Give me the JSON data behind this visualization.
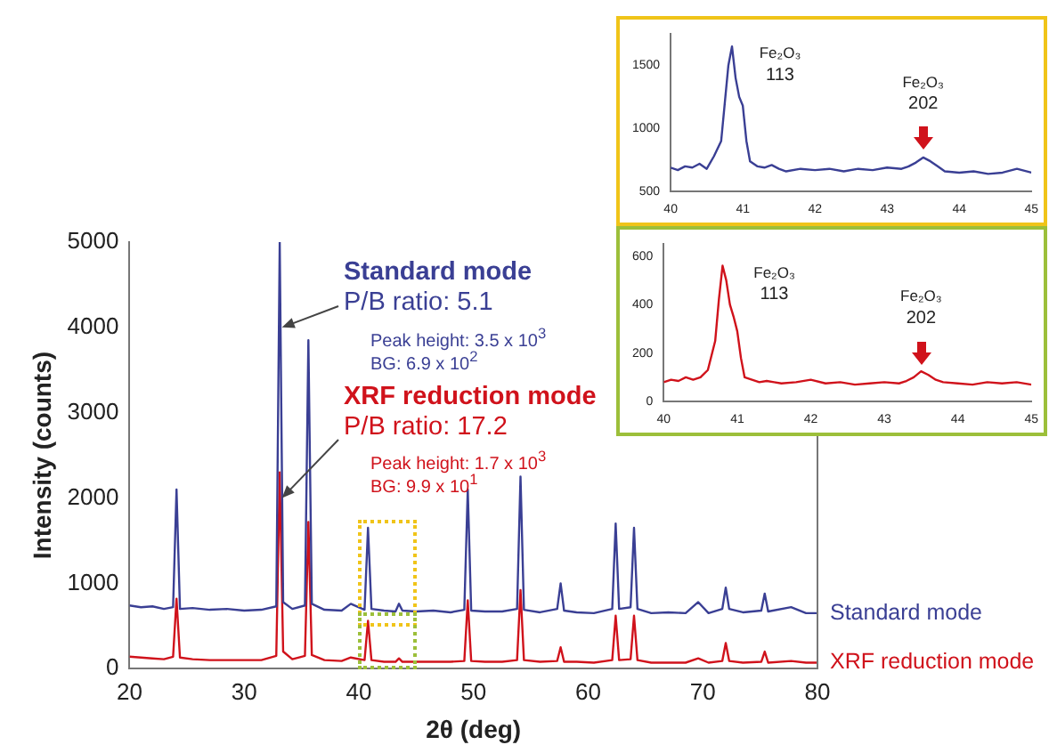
{
  "chart_data": [
    {
      "type": "line",
      "xlabel": "2θ (deg)",
      "ylabel": "Intensity (counts)",
      "xlim": [
        20,
        80
      ],
      "xticks": [
        20,
        30,
        40,
        50,
        60,
        70,
        80
      ],
      "ylim": [
        0,
        5000
      ],
      "yticks": [
        0,
        1000,
        2000,
        3000,
        4000,
        5000
      ],
      "x": [
        20,
        21,
        22,
        23,
        23.8,
        24.1,
        24.4,
        25.5,
        27,
        28.5,
        30,
        31.5,
        32.8,
        33.1,
        33.4,
        34.2,
        35.3,
        35.6,
        35.9,
        37,
        38.5,
        39.3,
        40.5,
        40.8,
        41.1,
        42.2,
        43.2,
        43.5,
        43.8,
        45,
        46.5,
        48,
        49.2,
        49.5,
        49.8,
        51,
        52.5,
        53.8,
        54.1,
        54.4,
        55.8,
        57.3,
        57.6,
        57.9,
        59,
        60.5,
        62.1,
        62.4,
        62.7,
        63.7,
        64,
        64.3,
        65.5,
        67,
        68.5,
        69.6,
        70.5,
        71.7,
        72,
        72.3,
        73.5,
        75.1,
        75.4,
        75.7,
        77.7,
        79,
        80
      ],
      "series": [
        {
          "name": "Standard mode",
          "color": "#3a3f94",
          "values": [
            740,
            720,
            730,
            700,
            720,
            2100,
            700,
            710,
            690,
            700,
            680,
            690,
            730,
            5000,
            780,
            700,
            740,
            3850,
            760,
            690,
            680,
            760,
            690,
            1650,
            700,
            680,
            670,
            760,
            680,
            670,
            680,
            660,
            690,
            2100,
            680,
            670,
            670,
            700,
            2250,
            690,
            660,
            700,
            1000,
            680,
            660,
            650,
            700,
            1700,
            700,
            720,
            1650,
            700,
            650,
            660,
            650,
            780,
            650,
            700,
            950,
            700,
            660,
            680,
            880,
            670,
            720,
            650,
            650
          ]
        },
        {
          "name": "XRF reduction mode",
          "color": "#d0121b",
          "values": [
            140,
            130,
            120,
            110,
            140,
            820,
            130,
            110,
            100,
            100,
            100,
            100,
            150,
            2300,
            200,
            110,
            150,
            1720,
            160,
            100,
            90,
            130,
            100,
            560,
            100,
            80,
            80,
            120,
            80,
            80,
            80,
            80,
            90,
            800,
            90,
            80,
            80,
            100,
            920,
            100,
            80,
            90,
            250,
            80,
            80,
            70,
            100,
            620,
            100,
            110,
            620,
            100,
            70,
            70,
            70,
            120,
            70,
            90,
            300,
            90,
            70,
            80,
            200,
            70,
            90,
            70,
            70
          ]
        }
      ],
      "annotations": [
        "Standard mode",
        {
          "text": "P/B ratio: 5.1",
          "x": 33.3,
          "y": 4000
        },
        "Peak height: 3.5 x 10$^{3}$",
        "BG: 6.9 x 10$^{2}$",
        "XRF reduction mode",
        {
          "text": "P/B ratio: 17.2",
          "x": 33.3,
          "y": 2000
        },
        "Peak height: 1.7 x 10$^{3}$",
        "BG: 9.9 x 10$^{1}$"
      ]
    },
    {
      "type": "line",
      "xlim": [
        40,
        45
      ],
      "xticks": [
        40,
        41,
        42,
        43,
        44,
        45
      ],
      "ylim": [
        500,
        1750
      ],
      "yticks": [
        500,
        1000,
        1500
      ],
      "x": [
        40,
        40.1,
        40.2,
        40.3,
        40.4,
        40.5,
        40.6,
        40.7,
        40.75,
        40.8,
        40.85,
        40.9,
        40.95,
        41,
        41.05,
        41.1,
        41.2,
        41.3,
        41.4,
        41.5,
        41.6,
        41.8,
        42,
        42.2,
        42.4,
        42.6,
        42.8,
        43,
        43.2,
        43.3,
        43.4,
        43.5,
        43.6,
        43.7,
        43.8,
        44,
        44.2,
        44.4,
        44.6,
        44.8,
        45
      ],
      "series": [
        {
          "color": "#3a3f94",
          "values": [
            690,
            670,
            700,
            690,
            720,
            680,
            780,
            900,
            1200,
            1500,
            1650,
            1400,
            1250,
            1180,
            900,
            740,
            700,
            690,
            710,
            680,
            660,
            680,
            670,
            680,
            660,
            680,
            670,
            690,
            680,
            700,
            730,
            770,
            740,
            700,
            660,
            650,
            660,
            640,
            650,
            680,
            650
          ]
        }
      ],
      "annotations": [
        {
          "text": "Fe₂O₃\n113",
          "x": 40.85,
          "y": 1650
        },
        {
          "text": "Fe₂O₃\n202",
          "x": 43.5,
          "y": 770
        }
      ]
    },
    {
      "type": "line",
      "xlim": [
        40,
        45
      ],
      "xticks": [
        40,
        41,
        42,
        43,
        44,
        45
      ],
      "ylim": [
        0,
        650
      ],
      "yticks": [
        0,
        200,
        400,
        600
      ],
      "x": [
        40,
        40.1,
        40.2,
        40.3,
        40.4,
        40.5,
        40.6,
        40.7,
        40.75,
        40.8,
        40.85,
        40.9,
        40.95,
        41,
        41.05,
        41.1,
        41.2,
        41.3,
        41.4,
        41.5,
        41.6,
        41.8,
        42,
        42.2,
        42.4,
        42.6,
        42.8,
        43,
        43.2,
        43.3,
        43.4,
        43.5,
        43.6,
        43.7,
        43.8,
        44,
        44.2,
        44.4,
        44.6,
        44.8,
        45
      ],
      "series": [
        {
          "color": "#d0121b",
          "values": [
            80,
            90,
            85,
            100,
            90,
            100,
            130,
            250,
            420,
            560,
            500,
            400,
            350,
            290,
            180,
            100,
            90,
            80,
            85,
            80,
            75,
            80,
            90,
            75,
            80,
            70,
            75,
            80,
            75,
            85,
            100,
            125,
            110,
            90,
            80,
            75,
            70,
            80,
            75,
            80,
            70
          ]
        }
      ],
      "annotations": [
        {
          "text": "Fe₂O₃\n113",
          "x": 40.85,
          "y": 560
        },
        {
          "text": "Fe₂O₃\n202",
          "x": 43.5,
          "y": 125
        }
      ]
    }
  ]
}
